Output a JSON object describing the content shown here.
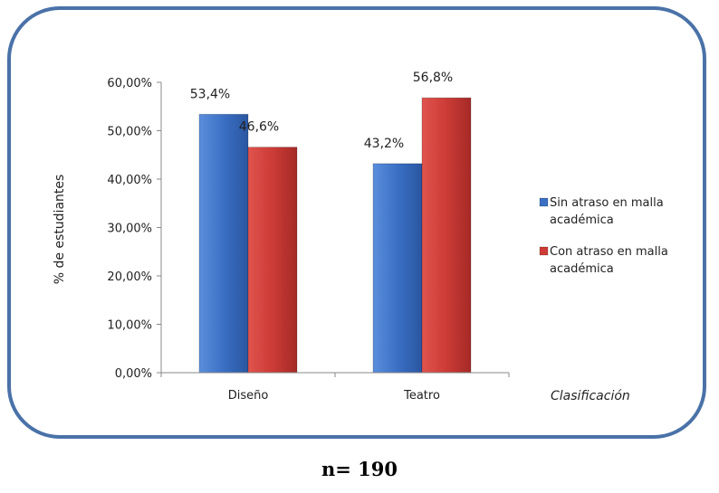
{
  "chart_data": {
    "type": "bar",
    "categories": [
      "Diseño",
      "Teatro"
    ],
    "series": [
      {
        "name": "Sin atraso en malla académica",
        "legend_lines": [
          "Sin atraso en malla",
          "académica"
        ],
        "values": [
          53.4,
          43.2
        ],
        "labels": [
          "53,4%",
          "43,2%"
        ],
        "color": "#3a6fc4"
      },
      {
        "name": "Con atraso en malla académica",
        "legend_lines": [
          "Con atraso en malla",
          "académica"
        ],
        "values": [
          46.6,
          56.8
        ],
        "labels": [
          "46,6%",
          "56,8%"
        ],
        "color": "#cc3b36"
      }
    ],
    "ylabel": "% de estudiantes",
    "xlabel": "Clasificación",
    "ylim": [
      0,
      60
    ],
    "yticks": [
      0,
      10,
      20,
      30,
      40,
      50,
      60
    ],
    "ytick_labels": [
      "0,00%",
      "10,00%",
      "20,00%",
      "30,00%",
      "40,00%",
      "50,00%",
      "60,00%"
    ],
    "legend_position": "right",
    "grid": false
  },
  "footer_text": "n= 190",
  "colors": {
    "frame": "#4a72a8",
    "axis": "#888888"
  }
}
